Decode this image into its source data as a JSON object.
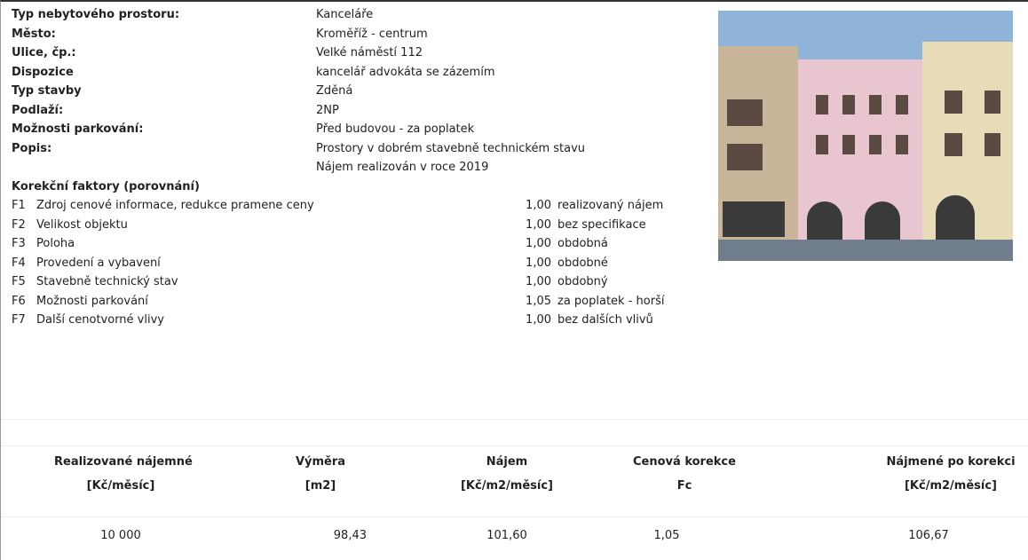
{
  "properties": [
    {
      "label": "Typ nebytového prostoru:",
      "value": [
        "Kanceláře"
      ]
    },
    {
      "label": "Město:",
      "value": [
        "Kroměříž - centrum"
      ]
    },
    {
      "label": "Ulice, čp.:",
      "value": [
        "Velké náměstí 112"
      ]
    },
    {
      "label": "Dispozice",
      "value": [
        "kancelář advokáta se zázemím"
      ]
    },
    {
      "label": "Typ stavby",
      "value": [
        "Zděná"
      ]
    },
    {
      "label": "Podlaží:",
      "value": [
        "2NP"
      ]
    },
    {
      "label": "Možnosti parkování:",
      "value": [
        "Před budovou - za poplatek"
      ]
    },
    {
      "label": "Popis:",
      "value": [
        "Prostory v dobrém stavebně technickém stavu",
        "Nájem realizován v roce 2019"
      ]
    }
  ],
  "factors_title": "Korekční faktory (porovnání)",
  "factors": [
    {
      "code": "F1",
      "name": "Zdroj cenové informace, redukce pramene ceny",
      "value": "1,00",
      "note": "realizovaný nájem"
    },
    {
      "code": "F2",
      "name": "Velikost objektu",
      "value": "1,00",
      "note": "bez specifikace"
    },
    {
      "code": "F3",
      "name": "Poloha",
      "value": "1,00",
      "note": "obdobná"
    },
    {
      "code": "F4",
      "name": "Provedení a vybavení",
      "value": "1,00",
      "note": "obdobné"
    },
    {
      "code": "F5",
      "name": "Stavebně technický stav",
      "value": "1,00",
      "note": "obdobný"
    },
    {
      "code": "F6",
      "name": "Možnosti parkování",
      "value": "1,05",
      "note": "za poplatek - horší"
    },
    {
      "code": "F7",
      "name": "Další cenotvorné vlivy",
      "value": "1,00",
      "note": "bez dalších vlivů"
    }
  ],
  "table": {
    "headers": [
      [
        "Realizované nájemné",
        "[Kč/měsíc]"
      ],
      [
        "Výměra",
        "[m2]"
      ],
      [
        "Nájem",
        "[Kč/m2/měsíc]"
      ],
      [
        "Cenová korekce",
        "Fc"
      ],
      [
        "Nájmené po korekci",
        "[Kč/m2/měsíc]"
      ]
    ],
    "row": [
      "10 000",
      "98,43",
      "101,60",
      "1,05",
      "106,67"
    ]
  }
}
